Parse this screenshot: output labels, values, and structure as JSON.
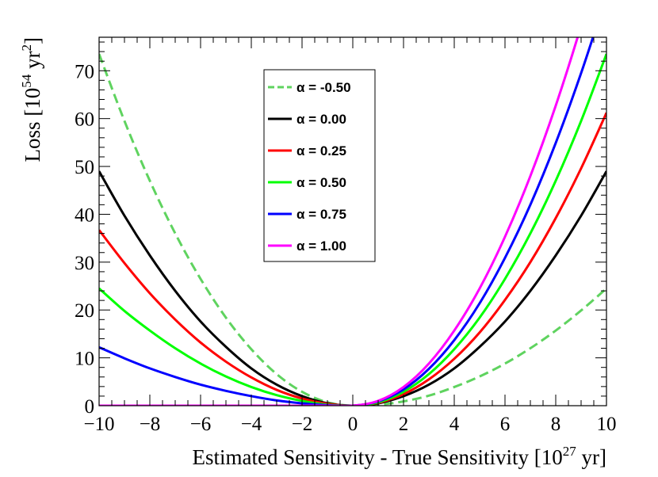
{
  "chart_data": {
    "type": "line",
    "xlabel": "Estimated Sensitivity - True Sensitivity [10^27 yr]",
    "xlabel_parts": {
      "pre": "Estimated Sensitivity - True Sensitivity [10",
      "exp": "27",
      "post": " yr]"
    },
    "ylabel": "Loss [10^54 yr^2]",
    "ylabel_parts": {
      "pre": "Loss [10",
      "exp1": "54",
      "mid": " yr",
      "exp2": "2",
      "post": "]"
    },
    "xlim": [
      -10,
      10
    ],
    "ylim": [
      0,
      77
    ],
    "x_ticks": [
      -10,
      -8,
      -6,
      -4,
      -2,
      0,
      2,
      4,
      6,
      8,
      10
    ],
    "x_tick_labels": [
      "−10",
      "−8",
      "−6",
      "−4",
      "−2",
      "0",
      "2",
      "4",
      "6",
      "8",
      "10"
    ],
    "y_ticks": [
      0,
      10,
      20,
      30,
      40,
      50,
      60,
      70
    ],
    "y_tick_labels": [
      "0",
      "10",
      "20",
      "30",
      "40",
      "50",
      "60",
      "70"
    ],
    "grid": false,
    "legend_position": "top-center",
    "x": [
      -10,
      -9,
      -8,
      -7,
      -6,
      -5,
      -4,
      -3,
      -2,
      -1,
      0,
      1,
      2,
      3,
      4,
      5,
      6,
      7,
      8,
      9,
      10
    ],
    "series": [
      {
        "name": "α = -0.50",
        "color": "#5fd35f",
        "dash": "dashed",
        "values": [
          73.5,
          59.5,
          47.0,
          36.0,
          26.5,
          18.4,
          11.8,
          6.6,
          2.9,
          0.7,
          0,
          0.2,
          0.9,
          2.1,
          3.9,
          6.1,
          8.8,
          12.0,
          15.7,
          19.9,
          24.5
        ]
      },
      {
        "name": "α = 0.00",
        "color": "#000000",
        "dash": "solid",
        "values": [
          49.0,
          39.7,
          31.4,
          24.0,
          17.6,
          12.3,
          7.8,
          4.4,
          2.0,
          0.5,
          0,
          0.5,
          2.0,
          4.4,
          7.8,
          12.3,
          17.6,
          24.0,
          31.4,
          39.7,
          49.0
        ]
      },
      {
        "name": "α = 0.25",
        "color": "#ff0000",
        "dash": "solid",
        "values": [
          36.7,
          29.8,
          23.5,
          18.0,
          13.2,
          9.2,
          5.9,
          3.3,
          1.5,
          0.4,
          0,
          0.6,
          2.4,
          5.5,
          9.8,
          15.3,
          22.1,
          30.0,
          39.2,
          49.6,
          61.2
        ]
      },
      {
        "name": "α = 0.50",
        "color": "#00ff00",
        "dash": "solid",
        "values": [
          24.5,
          19.8,
          15.7,
          12.0,
          8.8,
          6.1,
          3.9,
          2.2,
          1.0,
          0.2,
          0,
          0.7,
          2.9,
          6.6,
          11.8,
          18.4,
          26.5,
          36.0,
          47.0,
          59.5,
          73.5
        ]
      },
      {
        "name": "α = 0.75",
        "color": "#0000ff",
        "dash": "solid",
        "values": [
          12.2,
          9.9,
          7.8,
          6.0,
          4.4,
          3.1,
          2.0,
          1.1,
          0.5,
          0.1,
          0,
          0.9,
          3.4,
          7.7,
          13.7,
          21.4,
          30.9,
          42.0,
          54.9,
          69.5,
          85.7
        ]
      },
      {
        "name": "α = 1.00",
        "color": "#ff00ff",
        "dash": "solid",
        "values": [
          0,
          0,
          0,
          0,
          0,
          0,
          0,
          0,
          0,
          0,
          0,
          1.0,
          3.9,
          8.8,
          15.7,
          24.5,
          35.3,
          48.0,
          62.7,
          79.4,
          98.0
        ]
      }
    ]
  }
}
